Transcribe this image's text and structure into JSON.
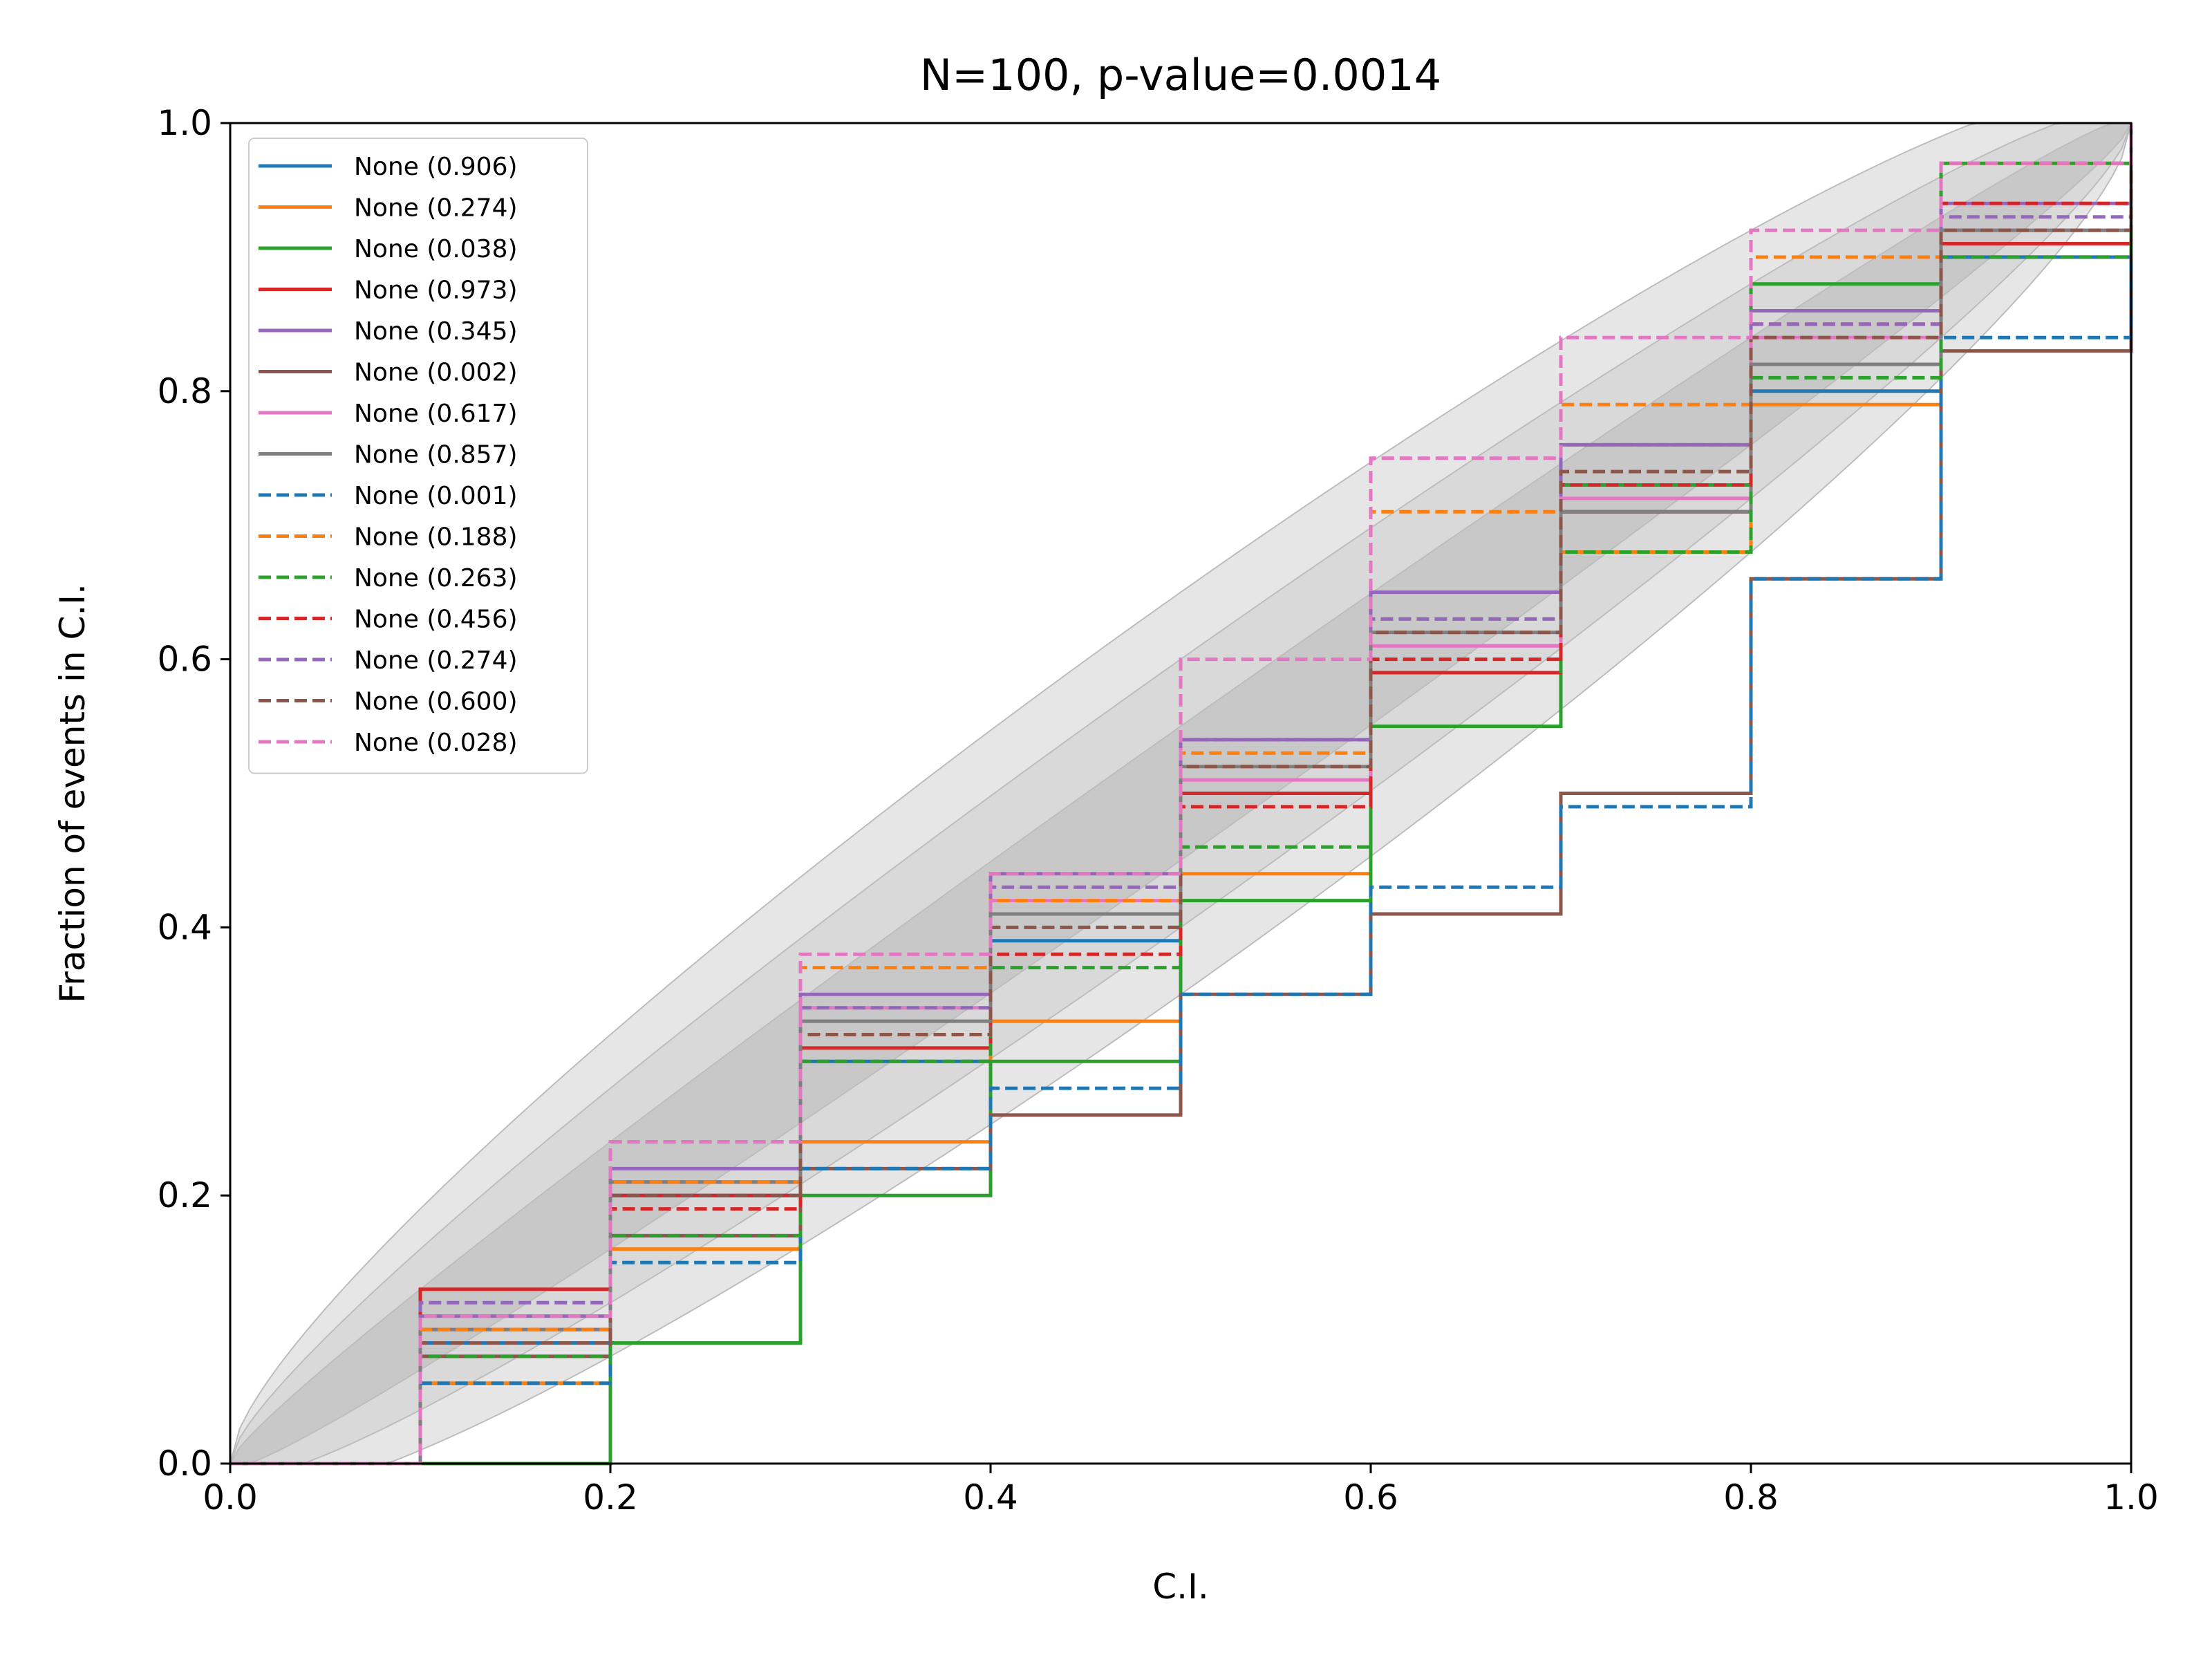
{
  "chart_data": {
    "type": "line",
    "title": "N=100, p-value=0.0014",
    "xlabel": "C.I.",
    "ylabel": "Fraction of events in C.I.",
    "xlim": [
      0,
      1
    ],
    "ylim": [
      0,
      1
    ],
    "xticks": [
      "0.0",
      "0.2",
      "0.4",
      "0.6",
      "0.8",
      "1.0"
    ],
    "yticks": [
      "0.0",
      "0.2",
      "0.4",
      "0.6",
      "0.8",
      "1.0"
    ],
    "grid": false,
    "legend_position": "upper-left",
    "bands": [
      {
        "level": "outer",
        "color": "#e6e6e6"
      },
      {
        "level": "middle",
        "color": "#d9d9d9"
      },
      {
        "level": "inner",
        "color": "#c8c8c8"
      }
    ],
    "series": [
      {
        "name": "None (0.906)",
        "color": "#1f77b4",
        "dash": "solid",
        "points": [
          [
            0,
            0
          ],
          [
            0.1,
            0.09
          ],
          [
            0.2,
            0.2
          ],
          [
            0.3,
            0.3
          ],
          [
            0.4,
            0.39
          ],
          [
            0.5,
            0.5
          ],
          [
            0.6,
            0.59
          ],
          [
            0.7,
            0.71
          ],
          [
            0.8,
            0.8
          ],
          [
            0.9,
            0.9
          ],
          [
            1,
            1
          ]
        ]
      },
      {
        "name": "None (0.274)",
        "color": "#ff7f0e",
        "dash": "solid",
        "points": [
          [
            0,
            0
          ],
          [
            0.1,
            0.06
          ],
          [
            0.2,
            0.16
          ],
          [
            0.3,
            0.24
          ],
          [
            0.4,
            0.33
          ],
          [
            0.5,
            0.44
          ],
          [
            0.6,
            0.55
          ],
          [
            0.7,
            0.68
          ],
          [
            0.8,
            0.79
          ],
          [
            0.9,
            0.91
          ],
          [
            1,
            1
          ]
        ]
      },
      {
        "name": "None (0.038)",
        "color": "#2ca02c",
        "dash": "solid",
        "points": [
          [
            0,
            0
          ],
          [
            0.1,
            0
          ],
          [
            0.2,
            0.09
          ],
          [
            0.3,
            0.2
          ],
          [
            0.4,
            0.3
          ],
          [
            0.5,
            0.42
          ],
          [
            0.6,
            0.55
          ],
          [
            0.7,
            0.73
          ],
          [
            0.8,
            0.88
          ],
          [
            0.9,
            0.97
          ],
          [
            1,
            1
          ]
        ]
      },
      {
        "name": "None (0.973)",
        "color": "#d62728",
        "dash": "solid",
        "points": [
          [
            0,
            0
          ],
          [
            0.1,
            0.13
          ],
          [
            0.2,
            0.2
          ],
          [
            0.3,
            0.31
          ],
          [
            0.4,
            0.41
          ],
          [
            0.5,
            0.5
          ],
          [
            0.6,
            0.59
          ],
          [
            0.7,
            0.71
          ],
          [
            0.8,
            0.82
          ],
          [
            0.9,
            0.91
          ],
          [
            1,
            1
          ]
        ]
      },
      {
        "name": "None (0.345)",
        "color": "#9467bd",
        "dash": "solid",
        "points": [
          [
            0,
            0
          ],
          [
            0.1,
            0.11
          ],
          [
            0.2,
            0.22
          ],
          [
            0.3,
            0.35
          ],
          [
            0.4,
            0.44
          ],
          [
            0.5,
            0.54
          ],
          [
            0.6,
            0.65
          ],
          [
            0.7,
            0.76
          ],
          [
            0.8,
            0.86
          ],
          [
            0.9,
            0.94
          ],
          [
            1,
            1
          ]
        ]
      },
      {
        "name": "None (0.002)",
        "color": "#8c564b",
        "dash": "solid",
        "points": [
          [
            0,
            0
          ],
          [
            0.1,
            0.08
          ],
          [
            0.2,
            0.17
          ],
          [
            0.3,
            0.22
          ],
          [
            0.4,
            0.26
          ],
          [
            0.5,
            0.35
          ],
          [
            0.6,
            0.41
          ],
          [
            0.7,
            0.5
          ],
          [
            0.8,
            0.66
          ],
          [
            0.9,
            0.83
          ],
          [
            1,
            1
          ]
        ]
      },
      {
        "name": "None (0.617)",
        "color": "#e377c2",
        "dash": "solid",
        "points": [
          [
            0,
            0
          ],
          [
            0.1,
            0.1
          ],
          [
            0.2,
            0.21
          ],
          [
            0.3,
            0.34
          ],
          [
            0.4,
            0.42
          ],
          [
            0.5,
            0.51
          ],
          [
            0.6,
            0.61
          ],
          [
            0.7,
            0.72
          ],
          [
            0.8,
            0.84
          ],
          [
            0.9,
            0.92
          ],
          [
            1,
            1
          ]
        ]
      },
      {
        "name": "None (0.857)",
        "color": "#7f7f7f",
        "dash": "solid",
        "points": [
          [
            0,
            0
          ],
          [
            0.1,
            0.1
          ],
          [
            0.2,
            0.21
          ],
          [
            0.3,
            0.33
          ],
          [
            0.4,
            0.41
          ],
          [
            0.5,
            0.52
          ],
          [
            0.6,
            0.62
          ],
          [
            0.7,
            0.71
          ],
          [
            0.8,
            0.82
          ],
          [
            0.9,
            0.92
          ],
          [
            1,
            1
          ]
        ]
      },
      {
        "name": "None (0.001)",
        "color": "#1f77b4",
        "dash": "dashed",
        "points": [
          [
            0,
            0
          ],
          [
            0.1,
            0.06
          ],
          [
            0.2,
            0.15
          ],
          [
            0.3,
            0.22
          ],
          [
            0.4,
            0.28
          ],
          [
            0.5,
            0.35
          ],
          [
            0.6,
            0.43
          ],
          [
            0.7,
            0.49
          ],
          [
            0.8,
            0.66
          ],
          [
            0.9,
            0.84
          ],
          [
            1,
            1
          ]
        ]
      },
      {
        "name": "None (0.188)",
        "color": "#ff7f0e",
        "dash": "dashed",
        "points": [
          [
            0,
            0
          ],
          [
            0.1,
            0.1
          ],
          [
            0.2,
            0.21
          ],
          [
            0.3,
            0.37
          ],
          [
            0.4,
            0.42
          ],
          [
            0.5,
            0.53
          ],
          [
            0.6,
            0.71
          ],
          [
            0.7,
            0.79
          ],
          [
            0.8,
            0.9
          ],
          [
            0.9,
            0.97
          ],
          [
            1,
            1
          ]
        ]
      },
      {
        "name": "None (0.263)",
        "color": "#2ca02c",
        "dash": "dashed",
        "points": [
          [
            0,
            0
          ],
          [
            0.1,
            0.08
          ],
          [
            0.2,
            0.17
          ],
          [
            0.3,
            0.3
          ],
          [
            0.4,
            0.37
          ],
          [
            0.5,
            0.46
          ],
          [
            0.6,
            0.55
          ],
          [
            0.7,
            0.68
          ],
          [
            0.8,
            0.81
          ],
          [
            0.9,
            0.9
          ],
          [
            1,
            1
          ]
        ]
      },
      {
        "name": "None (0.456)",
        "color": "#d62728",
        "dash": "dashed",
        "points": [
          [
            0,
            0
          ],
          [
            0.1,
            0.09
          ],
          [
            0.2,
            0.19
          ],
          [
            0.3,
            0.32
          ],
          [
            0.4,
            0.38
          ],
          [
            0.5,
            0.49
          ],
          [
            0.6,
            0.6
          ],
          [
            0.7,
            0.73
          ],
          [
            0.8,
            0.85
          ],
          [
            0.9,
            0.94
          ],
          [
            1,
            1
          ]
        ]
      },
      {
        "name": "None (0.274)",
        "color": "#9467bd",
        "dash": "dashed",
        "points": [
          [
            0,
            0
          ],
          [
            0.1,
            0.12
          ],
          [
            0.2,
            0.24
          ],
          [
            0.3,
            0.34
          ],
          [
            0.4,
            0.43
          ],
          [
            0.5,
            0.54
          ],
          [
            0.6,
            0.63
          ],
          [
            0.7,
            0.76
          ],
          [
            0.8,
            0.85
          ],
          [
            0.9,
            0.93
          ],
          [
            1,
            1
          ]
        ]
      },
      {
        "name": "None (0.600)",
        "color": "#8c564b",
        "dash": "dashed",
        "points": [
          [
            0,
            0
          ],
          [
            0.1,
            0.09
          ],
          [
            0.2,
            0.2
          ],
          [
            0.3,
            0.32
          ],
          [
            0.4,
            0.4
          ],
          [
            0.5,
            0.52
          ],
          [
            0.6,
            0.62
          ],
          [
            0.7,
            0.74
          ],
          [
            0.8,
            0.84
          ],
          [
            0.9,
            0.92
          ],
          [
            1,
            1
          ]
        ]
      },
      {
        "name": "None (0.028)",
        "color": "#e377c2",
        "dash": "dashed",
        "points": [
          [
            0,
            0
          ],
          [
            0.1,
            0.11
          ],
          [
            0.2,
            0.24
          ],
          [
            0.3,
            0.38
          ],
          [
            0.4,
            0.44
          ],
          [
            0.5,
            0.6
          ],
          [
            0.6,
            0.75
          ],
          [
            0.7,
            0.84
          ],
          [
            0.8,
            0.92
          ],
          [
            0.9,
            0.97
          ],
          [
            1,
            1
          ]
        ]
      }
    ]
  }
}
